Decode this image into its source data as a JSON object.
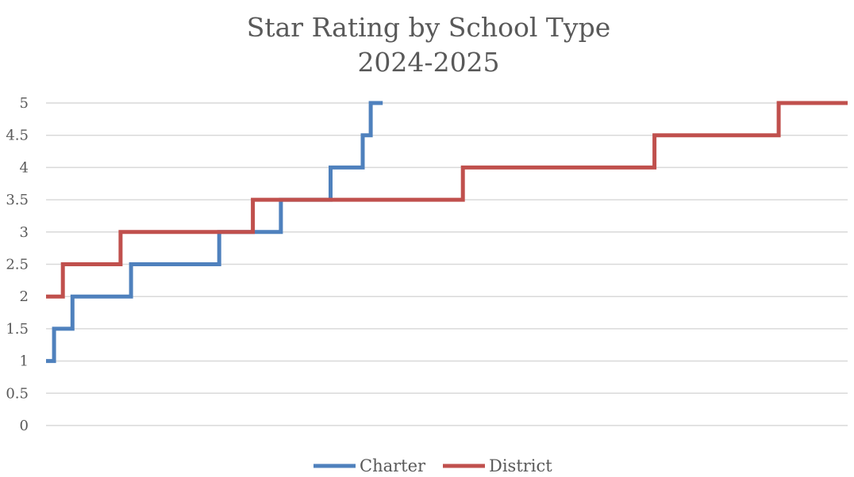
{
  "chart_data": {
    "type": "line",
    "title": "Star Rating by School Type",
    "subtitle": "2024-2025",
    "y_ticks": [
      "0",
      "0.5",
      "1",
      "1.5",
      "2",
      "2.5",
      "3",
      "3.5",
      "4",
      "4.5",
      "5"
    ],
    "ylim": [
      0,
      5
    ],
    "xlim": [
      0,
      100
    ],
    "grid": true,
    "legend_position": "bottom",
    "series": [
      {
        "name": "Charter",
        "color": "#4f81bd",
        "x": [
          0,
          1.0,
          1.0,
          3.3,
          3.3,
          10.6,
          10.6,
          21.6,
          21.6,
          29.3,
          29.3,
          35.5,
          35.5,
          39.5,
          39.5,
          40.5,
          40.5,
          42.0
        ],
        "y": [
          1,
          1,
          1.5,
          1.5,
          2,
          2,
          2.5,
          2.5,
          3,
          3,
          3.5,
          3.5,
          4,
          4,
          4.5,
          4.5,
          5,
          5
        ]
      },
      {
        "name": "District",
        "color": "#c0504d",
        "x": [
          0,
          2.1,
          2.1,
          9.3,
          9.3,
          25.8,
          25.8,
          52.0,
          52.0,
          75.9,
          75.9,
          91.4,
          91.4,
          100
        ],
        "y": [
          2,
          2,
          2.5,
          2.5,
          3,
          3,
          3.5,
          3.5,
          4,
          4,
          4.5,
          4.5,
          5,
          5
        ]
      }
    ]
  }
}
